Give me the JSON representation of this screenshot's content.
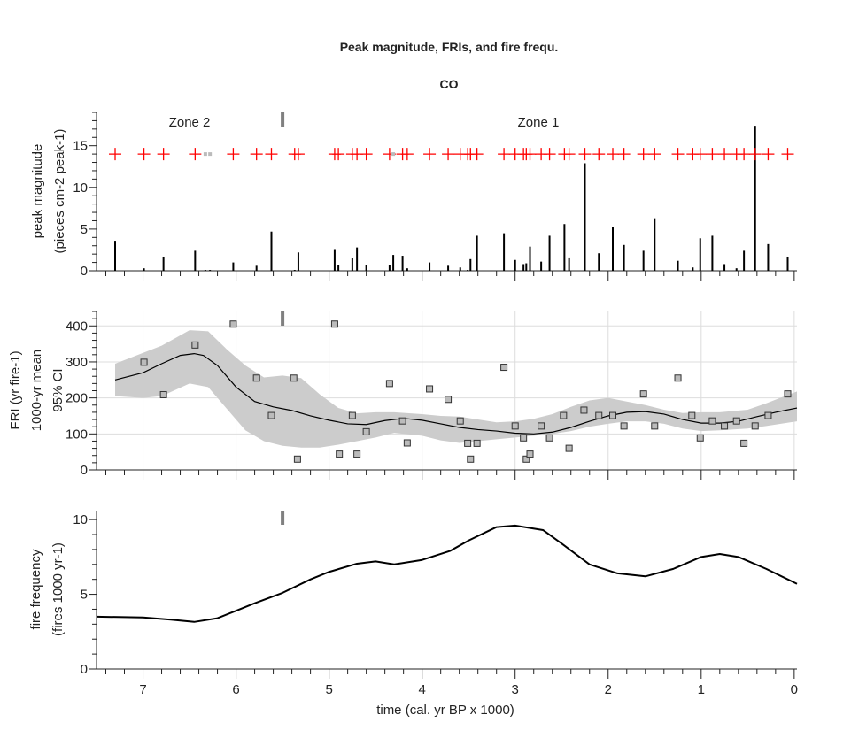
{
  "chart_data": [
    {
      "type": "bar",
      "title": "Peak magnitude, FRIs, and fire frequ.",
      "subtitle": "CO",
      "ylabel_line1": "peak magnitude",
      "ylabel_line2": "(pieces cm-2 peak-1)",
      "ylim": [
        0,
        19
      ],
      "yticks": [
        0,
        5,
        10,
        15
      ],
      "xlim": [
        7.5,
        -0.03
      ],
      "zones": [
        {
          "label": "Zone 2",
          "center": 6.5
        },
        {
          "label": "Zone 1",
          "center": 2.75
        }
      ],
      "zone_boundary": 5.5,
      "significance_marker_level": 14,
      "colors": {
        "significant": "#ff0000",
        "not_significant": "#bbbbbb",
        "peak": "#000000",
        "boundary": "#808080"
      },
      "peaks": [
        {
          "t": 7.3,
          "v": 3.6,
          "sig": true
        },
        {
          "t": 6.99,
          "v": 0.3,
          "sig": true
        },
        {
          "t": 6.78,
          "v": 1.7,
          "sig": true
        },
        {
          "t": 6.44,
          "v": 2.4,
          "sig": true
        },
        {
          "t": 6.33,
          "v": 0.1,
          "sig": false
        },
        {
          "t": 6.28,
          "v": 0.1,
          "sig": false
        },
        {
          "t": 6.03,
          "v": 1.0,
          "sig": true
        },
        {
          "t": 5.78,
          "v": 0.6,
          "sig": true
        },
        {
          "t": 5.62,
          "v": 4.7,
          "sig": true
        },
        {
          "t": 5.37,
          "v": 0.1,
          "sig": true
        },
        {
          "t": 5.33,
          "v": 2.2,
          "sig": true
        },
        {
          "t": 4.94,
          "v": 2.6,
          "sig": true
        },
        {
          "t": 4.9,
          "v": 0.7,
          "sig": true
        },
        {
          "t": 4.75,
          "v": 1.5,
          "sig": true
        },
        {
          "t": 4.7,
          "v": 2.8,
          "sig": true
        },
        {
          "t": 4.6,
          "v": 0.7,
          "sig": true
        },
        {
          "t": 4.35,
          "v": 0.7,
          "sig": true
        },
        {
          "t": 4.31,
          "v": 1.9,
          "sig": false
        },
        {
          "t": 4.21,
          "v": 1.8,
          "sig": true
        },
        {
          "t": 4.16,
          "v": 0.3,
          "sig": true
        },
        {
          "t": 3.92,
          "v": 1.0,
          "sig": true
        },
        {
          "t": 3.72,
          "v": 0.6,
          "sig": true
        },
        {
          "t": 3.59,
          "v": 0.4,
          "sig": true
        },
        {
          "t": 3.51,
          "v": 0.1,
          "sig": true
        },
        {
          "t": 3.48,
          "v": 1.4,
          "sig": true
        },
        {
          "t": 3.41,
          "v": 4.2,
          "sig": true
        },
        {
          "t": 3.12,
          "v": 4.5,
          "sig": true
        },
        {
          "t": 3.0,
          "v": 1.3,
          "sig": true
        },
        {
          "t": 2.91,
          "v": 0.8,
          "sig": true
        },
        {
          "t": 2.88,
          "v": 0.9,
          "sig": true
        },
        {
          "t": 2.84,
          "v": 2.9,
          "sig": true
        },
        {
          "t": 2.72,
          "v": 1.1,
          "sig": true
        },
        {
          "t": 2.63,
          "v": 4.2,
          "sig": true
        },
        {
          "t": 2.47,
          "v": 5.6,
          "sig": true
        },
        {
          "t": 2.42,
          "v": 1.6,
          "sig": true
        },
        {
          "t": 2.25,
          "v": 12.9,
          "sig": true
        },
        {
          "t": 2.1,
          "v": 2.1,
          "sig": true
        },
        {
          "t": 1.95,
          "v": 5.3,
          "sig": true
        },
        {
          "t": 1.83,
          "v": 3.1,
          "sig": true
        },
        {
          "t": 1.62,
          "v": 2.4,
          "sig": true
        },
        {
          "t": 1.5,
          "v": 6.3,
          "sig": true
        },
        {
          "t": 1.25,
          "v": 1.2,
          "sig": true
        },
        {
          "t": 1.09,
          "v": 0.4,
          "sig": true
        },
        {
          "t": 1.01,
          "v": 3.9,
          "sig": true
        },
        {
          "t": 0.88,
          "v": 4.2,
          "sig": true
        },
        {
          "t": 0.75,
          "v": 0.8,
          "sig": true
        },
        {
          "t": 0.62,
          "v": 0.3,
          "sig": true
        },
        {
          "t": 0.54,
          "v": 2.4,
          "sig": true
        },
        {
          "t": 0.42,
          "v": 17.4,
          "sig": true
        },
        {
          "t": 0.28,
          "v": 3.2,
          "sig": true
        },
        {
          "t": 0.07,
          "v": 1.7,
          "sig": true
        }
      ]
    },
    {
      "type": "scatter",
      "ylabel_line1": "FRI (yr fire-1)",
      "ylabel_line2": "1000-yr mean",
      "ylabel_line3": "95% CI",
      "ylim": [
        0,
        440
      ],
      "yticks": [
        0,
        100,
        200,
        300,
        400
      ],
      "xlim": [
        7.5,
        -0.03
      ],
      "grid": true,
      "colors": {
        "marker": "#bbbbbb",
        "ci": "#cccccc",
        "mean": "#000000"
      },
      "fri_points": [
        [
          6.99,
          299
        ],
        [
          6.78,
          209
        ],
        [
          6.44,
          347
        ],
        [
          6.03,
          405
        ],
        [
          5.78,
          255
        ],
        [
          5.62,
          151
        ],
        [
          5.38,
          255
        ],
        [
          5.34,
          30
        ],
        [
          4.94,
          405
        ],
        [
          4.89,
          44
        ],
        [
          4.75,
          151
        ],
        [
          4.7,
          44
        ],
        [
          4.6,
          106
        ],
        [
          4.35,
          240
        ],
        [
          4.21,
          136
        ],
        [
          4.16,
          75
        ],
        [
          3.92,
          225
        ],
        [
          3.72,
          196
        ],
        [
          3.59,
          136
        ],
        [
          3.51,
          74
        ],
        [
          3.48,
          30
        ],
        [
          3.41,
          74
        ],
        [
          3.12,
          285
        ],
        [
          3.0,
          122
        ],
        [
          2.91,
          89
        ],
        [
          2.88,
          30
        ],
        [
          2.84,
          44
        ],
        [
          2.72,
          122
        ],
        [
          2.63,
          89
        ],
        [
          2.48,
          151
        ],
        [
          2.42,
          60
        ],
        [
          2.26,
          166
        ],
        [
          2.1,
          151
        ],
        [
          1.95,
          151
        ],
        [
          1.83,
          122
        ],
        [
          1.62,
          211
        ],
        [
          1.5,
          122
        ],
        [
          1.25,
          255
        ],
        [
          1.1,
          151
        ],
        [
          1.01,
          89
        ],
        [
          0.88,
          136
        ],
        [
          0.75,
          122
        ],
        [
          0.62,
          136
        ],
        [
          0.54,
          74
        ],
        [
          0.42,
          122
        ],
        [
          0.28,
          151
        ],
        [
          0.07,
          211
        ]
      ],
      "mean": [
        [
          7.3,
          250
        ],
        [
          7.0,
          270
        ],
        [
          6.8,
          295
        ],
        [
          6.6,
          318
        ],
        [
          6.45,
          323
        ],
        [
          6.35,
          318
        ],
        [
          6.2,
          290
        ],
        [
          6.0,
          230
        ],
        [
          5.8,
          190
        ],
        [
          5.6,
          175
        ],
        [
          5.4,
          165
        ],
        [
          5.2,
          150
        ],
        [
          5.0,
          138
        ],
        [
          4.8,
          128
        ],
        [
          4.6,
          126
        ],
        [
          4.4,
          137
        ],
        [
          4.2,
          143
        ],
        [
          4.0,
          138
        ],
        [
          3.8,
          128
        ],
        [
          3.6,
          118
        ],
        [
          3.4,
          112
        ],
        [
          3.2,
          108
        ],
        [
          3.0,
          102
        ],
        [
          2.8,
          100
        ],
        [
          2.6,
          105
        ],
        [
          2.4,
          118
        ],
        [
          2.2,
          135
        ],
        [
          2.0,
          150
        ],
        [
          1.8,
          160
        ],
        [
          1.6,
          162
        ],
        [
          1.4,
          155
        ],
        [
          1.2,
          140
        ],
        [
          1.0,
          130
        ],
        [
          0.8,
          130
        ],
        [
          0.6,
          135
        ],
        [
          0.4,
          148
        ],
        [
          0.2,
          160
        ],
        [
          -0.03,
          172
        ]
      ],
      "ci_upper": [
        [
          7.3,
          295
        ],
        [
          6.8,
          345
        ],
        [
          6.5,
          388
        ],
        [
          6.3,
          385
        ],
        [
          6.1,
          335
        ],
        [
          5.9,
          290
        ],
        [
          5.7,
          257
        ],
        [
          5.5,
          262
        ],
        [
          5.3,
          255
        ],
        [
          5.1,
          210
        ],
        [
          4.9,
          172
        ],
        [
          4.7,
          157
        ],
        [
          4.5,
          160
        ],
        [
          4.3,
          160
        ],
        [
          4.0,
          155
        ],
        [
          3.8,
          150
        ],
        [
          3.6,
          148
        ],
        [
          3.4,
          140
        ],
        [
          3.2,
          132
        ],
        [
          3.0,
          135
        ],
        [
          2.8,
          142
        ],
        [
          2.6,
          155
        ],
        [
          2.4,
          175
        ],
        [
          2.2,
          193
        ],
        [
          2.0,
          200
        ],
        [
          1.8,
          190
        ],
        [
          1.6,
          180
        ],
        [
          1.4,
          167
        ],
        [
          1.2,
          158
        ],
        [
          1.0,
          160
        ],
        [
          0.8,
          160
        ],
        [
          0.5,
          167
        ],
        [
          0.3,
          185
        ],
        [
          -0.03,
          218
        ]
      ],
      "ci_lower": [
        [
          7.3,
          205
        ],
        [
          7.0,
          200
        ],
        [
          6.8,
          205
        ],
        [
          6.5,
          240
        ],
        [
          6.3,
          230
        ],
        [
          6.1,
          170
        ],
        [
          5.9,
          110
        ],
        [
          5.7,
          80
        ],
        [
          5.5,
          67
        ],
        [
          5.3,
          62
        ],
        [
          5.1,
          62
        ],
        [
          4.9,
          70
        ],
        [
          4.7,
          80
        ],
        [
          4.5,
          90
        ],
        [
          4.3,
          103
        ],
        [
          4.0,
          95
        ],
        [
          3.8,
          82
        ],
        [
          3.6,
          75
        ],
        [
          3.4,
          80
        ],
        [
          3.2,
          85
        ],
        [
          3.0,
          90
        ],
        [
          2.8,
          95
        ],
        [
          2.6,
          100
        ],
        [
          2.4,
          108
        ],
        [
          2.2,
          120
        ],
        [
          2.0,
          128
        ],
        [
          1.8,
          135
        ],
        [
          1.6,
          135
        ],
        [
          1.4,
          128
        ],
        [
          1.2,
          115
        ],
        [
          1.0,
          108
        ],
        [
          0.8,
          110
        ],
        [
          0.5,
          115
        ],
        [
          0.3,
          122
        ],
        [
          -0.03,
          135
        ]
      ]
    },
    {
      "type": "line",
      "ylabel_line1": "fire frequency",
      "ylabel_line2": "(fires 1000 yr-1)",
      "xlabel": "time (cal. yr BP x 1000)",
      "ylim": [
        0,
        10.6
      ],
      "yticks": [
        0,
        5,
        10
      ],
      "xlim": [
        7.5,
        -0.03
      ],
      "xticks": [
        7,
        6,
        5,
        4,
        3,
        2,
        1,
        0
      ],
      "series": [
        {
          "values": [
            [
              7.5,
              3.5
            ],
            [
              7.0,
              3.45
            ],
            [
              6.7,
              3.3
            ],
            [
              6.45,
              3.15
            ],
            [
              6.2,
              3.4
            ],
            [
              6.0,
              3.9
            ],
            [
              5.8,
              4.4
            ],
            [
              5.5,
              5.1
            ],
            [
              5.2,
              6.0
            ],
            [
              5.0,
              6.5
            ],
            [
              4.7,
              7.05
            ],
            [
              4.5,
              7.2
            ],
            [
              4.3,
              7.0
            ],
            [
              4.0,
              7.3
            ],
            [
              3.7,
              7.9
            ],
            [
              3.5,
              8.6
            ],
            [
              3.2,
              9.5
            ],
            [
              3.0,
              9.6
            ],
            [
              2.7,
              9.3
            ],
            [
              2.5,
              8.4
            ],
            [
              2.2,
              7.0
            ],
            [
              1.9,
              6.4
            ],
            [
              1.6,
              6.2
            ],
            [
              1.3,
              6.7
            ],
            [
              1.0,
              7.5
            ],
            [
              0.8,
              7.7
            ],
            [
              0.6,
              7.5
            ],
            [
              0.3,
              6.7
            ],
            [
              -0.03,
              5.7
            ]
          ]
        }
      ]
    }
  ]
}
